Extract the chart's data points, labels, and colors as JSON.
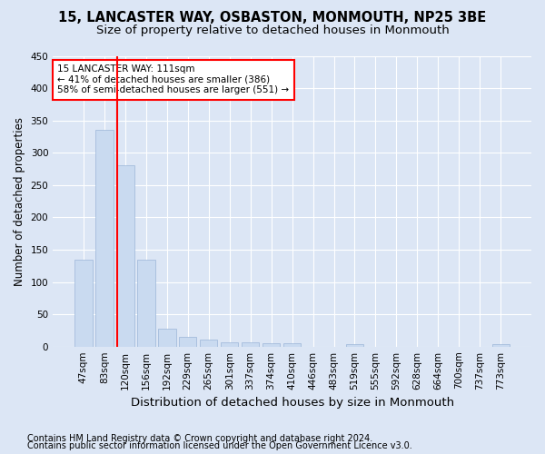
{
  "title1": "15, LANCASTER WAY, OSBASTON, MONMOUTH, NP25 3BE",
  "title2": "Size of property relative to detached houses in Monmouth",
  "xlabel": "Distribution of detached houses by size in Monmouth",
  "ylabel": "Number of detached properties",
  "footer1": "Contains HM Land Registry data © Crown copyright and database right 2024.",
  "footer2": "Contains public sector information licensed under the Open Government Licence v3.0.",
  "bar_labels": [
    "47sqm",
    "83sqm",
    "120sqm",
    "156sqm",
    "192sqm",
    "229sqm",
    "265sqm",
    "301sqm",
    "337sqm",
    "374sqm",
    "410sqm",
    "446sqm",
    "483sqm",
    "519sqm",
    "555sqm",
    "592sqm",
    "628sqm",
    "664sqm",
    "700sqm",
    "737sqm",
    "773sqm"
  ],
  "bar_values": [
    135,
    335,
    281,
    134,
    27,
    15,
    11,
    7,
    6,
    5,
    5,
    0,
    0,
    4,
    0,
    0,
    0,
    0,
    0,
    0,
    4
  ],
  "bar_color": "#c9daf0",
  "bar_edgecolor": "#9ab5d8",
  "vline_x": 1.62,
  "vline_color": "red",
  "annotation_text": "15 LANCASTER WAY: 111sqm\n← 41% of detached houses are smaller (386)\n58% of semi-detached houses are larger (551) →",
  "annotation_box_color": "white",
  "annotation_box_edgecolor": "red",
  "ylim": [
    0,
    450
  ],
  "yticks": [
    0,
    50,
    100,
    150,
    200,
    250,
    300,
    350,
    400,
    450
  ],
  "background_color": "#dce6f5",
  "plot_background": "#dce6f5",
  "grid_color": "white",
  "title1_fontsize": 10.5,
  "title2_fontsize": 9.5,
  "xlabel_fontsize": 9.5,
  "ylabel_fontsize": 8.5,
  "tick_fontsize": 7.5,
  "annot_fontsize": 7.5,
  "footer_fontsize": 7.0
}
